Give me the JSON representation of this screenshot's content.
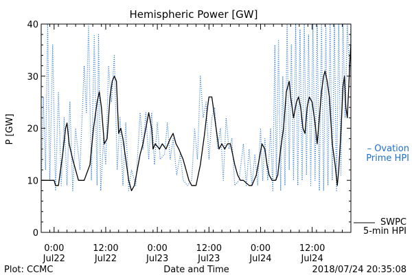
{
  "chart_data": {
    "type": "line",
    "title": "Hemispheric Power [GW]",
    "ylabel": "P [GW]",
    "xlabel": "Date and Time",
    "ylim": [
      0,
      40
    ],
    "yticks": [
      0,
      10,
      20,
      30,
      40
    ],
    "xlim": [
      "2018-07-21 21:00",
      "2018-07-24 21:00"
    ],
    "xticks": [
      {
        "time": "2018-07-22 00:00",
        "label1": "0:00",
        "label2": "Jul22"
      },
      {
        "time": "2018-07-22 12:00",
        "label1": "12:00",
        "label2": "Jul22"
      },
      {
        "time": "2018-07-23 00:00",
        "label1": "0:00",
        "label2": "Jul23"
      },
      {
        "time": "2018-07-23 12:00",
        "label1": "12:00",
        "label2": "Jul23"
      },
      {
        "time": "2018-07-24 00:00",
        "label1": "0:00",
        "label2": "Jul24"
      },
      {
        "time": "2018-07-24 12:00",
        "label1": "12:00",
        "label2": "Jul24"
      }
    ],
    "grid": false,
    "legend_placement": "right",
    "series": [
      {
        "name": "SWPC 5-min HPI",
        "style": "solid",
        "color": "#000000",
        "points": [
          [
            "2018-07-21 21:00",
            10
          ],
          [
            "2018-07-22 00:00",
            10
          ],
          [
            "2018-07-22 00:20",
            9
          ],
          [
            "2018-07-22 01:00",
            9
          ],
          [
            "2018-07-22 02:00",
            15
          ],
          [
            "2018-07-22 02:40",
            20
          ],
          [
            "2018-07-22 03:00",
            21
          ],
          [
            "2018-07-22 03:30",
            17
          ],
          [
            "2018-07-22 04:20",
            14
          ],
          [
            "2018-07-22 05:00",
            12
          ],
          [
            "2018-07-22 05:40",
            10
          ],
          [
            "2018-07-22 07:00",
            10
          ],
          [
            "2018-07-22 08:20",
            13
          ],
          [
            "2018-07-22 09:10",
            20
          ],
          [
            "2018-07-22 10:00",
            25
          ],
          [
            "2018-07-22 10:30",
            27
          ],
          [
            "2018-07-22 11:00",
            24
          ],
          [
            "2018-07-22 11:40",
            17
          ],
          [
            "2018-07-22 12:20",
            18
          ],
          [
            "2018-07-22 13:00",
            26
          ],
          [
            "2018-07-22 13:30",
            29
          ],
          [
            "2018-07-22 14:00",
            30
          ],
          [
            "2018-07-22 14:30",
            29
          ],
          [
            "2018-07-22 15:00",
            19
          ],
          [
            "2018-07-22 15:30",
            20
          ],
          [
            "2018-07-22 16:00",
            18
          ],
          [
            "2018-07-22 16:40",
            14
          ],
          [
            "2018-07-22 17:20",
            10
          ],
          [
            "2018-07-22 18:00",
            8
          ],
          [
            "2018-07-22 18:40",
            9
          ],
          [
            "2018-07-22 19:20",
            12
          ],
          [
            "2018-07-22 20:00",
            15
          ],
          [
            "2018-07-22 20:40",
            17
          ],
          [
            "2018-07-22 21:20",
            20
          ],
          [
            "2018-07-22 22:00",
            23
          ],
          [
            "2018-07-22 22:40",
            20
          ],
          [
            "2018-07-22 23:00",
            16
          ],
          [
            "2018-07-22 23:30",
            17
          ],
          [
            "2018-07-23 00:30",
            16
          ],
          [
            "2018-07-23 01:10",
            17
          ],
          [
            "2018-07-23 02:00",
            16
          ],
          [
            "2018-07-23 03:00",
            18
          ],
          [
            "2018-07-23 03:40",
            19
          ],
          [
            "2018-07-23 04:20",
            17
          ],
          [
            "2018-07-23 05:00",
            16
          ],
          [
            "2018-07-23 06:00",
            14
          ],
          [
            "2018-07-23 06:40",
            12
          ],
          [
            "2018-07-23 07:20",
            10
          ],
          [
            "2018-07-23 08:00",
            9
          ],
          [
            "2018-07-23 09:00",
            9
          ],
          [
            "2018-07-23 10:00",
            13
          ],
          [
            "2018-07-23 11:00",
            19
          ],
          [
            "2018-07-23 11:40",
            24
          ],
          [
            "2018-07-23 12:00",
            26
          ],
          [
            "2018-07-23 12:40",
            26
          ],
          [
            "2018-07-23 13:00",
            24
          ],
          [
            "2018-07-23 13:40",
            20
          ],
          [
            "2018-07-23 14:20",
            16
          ],
          [
            "2018-07-23 15:00",
            17
          ],
          [
            "2018-07-23 15:40",
            16
          ],
          [
            "2018-07-23 16:20",
            17
          ],
          [
            "2018-07-23 17:00",
            17
          ],
          [
            "2018-07-23 18:00",
            13
          ],
          [
            "2018-07-23 18:40",
            11
          ],
          [
            "2018-07-23 19:20",
            10
          ],
          [
            "2018-07-23 20:00",
            10
          ],
          [
            "2018-07-23 21:20",
            9
          ],
          [
            "2018-07-23 22:00",
            9
          ],
          [
            "2018-07-23 23:00",
            11
          ],
          [
            "2018-07-23 23:40",
            14
          ],
          [
            "2018-07-24 00:20",
            17
          ],
          [
            "2018-07-24 01:00",
            16
          ],
          [
            "2018-07-24 01:30",
            13
          ],
          [
            "2018-07-24 02:00",
            11
          ],
          [
            "2018-07-24 02:40",
            10
          ],
          [
            "2018-07-24 03:30",
            10
          ],
          [
            "2018-07-24 04:00",
            11
          ],
          [
            "2018-07-24 04:40",
            16
          ],
          [
            "2018-07-24 05:20",
            20
          ],
          [
            "2018-07-24 06:00",
            27
          ],
          [
            "2018-07-24 06:40",
            29
          ],
          [
            "2018-07-24 07:00",
            26
          ],
          [
            "2018-07-24 07:40",
            22
          ],
          [
            "2018-07-24 08:20",
            25
          ],
          [
            "2018-07-24 08:50",
            26
          ],
          [
            "2018-07-24 09:20",
            24
          ],
          [
            "2018-07-24 09:50",
            20
          ],
          [
            "2018-07-24 10:20",
            19
          ],
          [
            "2018-07-24 10:50",
            24
          ],
          [
            "2018-07-24 11:20",
            26
          ],
          [
            "2018-07-24 12:00",
            25
          ],
          [
            "2018-07-24 12:40",
            21
          ],
          [
            "2018-07-24 13:10",
            17
          ],
          [
            "2018-07-24 13:40",
            22
          ],
          [
            "2018-07-24 14:10",
            27
          ],
          [
            "2018-07-24 14:40",
            30
          ],
          [
            "2018-07-24 15:00",
            31
          ],
          [
            "2018-07-24 15:30",
            29
          ],
          [
            "2018-07-24 16:00",
            26
          ],
          [
            "2018-07-24 16:40",
            17
          ],
          [
            "2018-07-24 17:20",
            13
          ],
          [
            "2018-07-24 17:50",
            9
          ],
          [
            "2018-07-24 18:10",
            12
          ],
          [
            "2018-07-24 18:40",
            19
          ],
          [
            "2018-07-24 19:10",
            28
          ],
          [
            "2018-07-24 19:30",
            30
          ],
          [
            "2018-07-24 19:50",
            24
          ],
          [
            "2018-07-24 20:10",
            22
          ],
          [
            "2018-07-24 20:30",
            28
          ],
          [
            "2018-07-24 20:50",
            34
          ],
          [
            "2018-07-24 21:00",
            36
          ]
        ]
      },
      {
        "name": "Ovation Prime HPI",
        "style": "dotted",
        "color": "#1f6fd0",
        "points": [
          [
            "2018-07-21 21:00",
            8
          ],
          [
            "2018-07-21 21:30",
            26
          ],
          [
            "2018-07-21 22:00",
            12
          ],
          [
            "2018-07-21 22:30",
            40
          ],
          [
            "2018-07-21 23:00",
            10
          ],
          [
            "2018-07-21 23:40",
            36
          ],
          [
            "2018-07-22 00:20",
            8
          ],
          [
            "2018-07-22 01:00",
            27
          ],
          [
            "2018-07-22 01:40",
            9
          ],
          [
            "2018-07-22 02:20",
            22
          ],
          [
            "2018-07-22 03:00",
            9
          ],
          [
            "2018-07-22 03:40",
            25
          ],
          [
            "2018-07-22 04:20",
            8
          ],
          [
            "2018-07-22 05:00",
            20
          ],
          [
            "2018-07-22 06:00",
            12
          ],
          [
            "2018-07-22 07:00",
            32
          ],
          [
            "2018-07-22 07:30",
            23
          ],
          [
            "2018-07-22 08:00",
            40
          ],
          [
            "2018-07-22 08:40",
            10
          ],
          [
            "2018-07-22 09:20",
            38
          ],
          [
            "2018-07-22 10:00",
            9
          ],
          [
            "2018-07-22 10:20",
            38
          ],
          [
            "2018-07-22 10:50",
            8
          ],
          [
            "2018-07-22 11:30",
            18
          ],
          [
            "2018-07-22 12:00",
            13
          ],
          [
            "2018-07-22 12:40",
            32
          ],
          [
            "2018-07-22 13:20",
            25
          ],
          [
            "2018-07-22 14:00",
            34
          ],
          [
            "2018-07-22 14:40",
            12
          ],
          [
            "2018-07-22 15:20",
            22
          ],
          [
            "2018-07-22 16:00",
            9
          ],
          [
            "2018-07-22 16:40",
            21
          ],
          [
            "2018-07-22 17:20",
            8
          ],
          [
            "2018-07-22 18:00",
            12
          ],
          [
            "2018-07-22 19:00",
            9
          ],
          [
            "2018-07-22 20:00",
            23
          ],
          [
            "2018-07-22 20:40",
            16
          ],
          [
            "2018-07-22 21:20",
            23
          ],
          [
            "2018-07-22 22:00",
            14
          ],
          [
            "2018-07-22 22:40",
            23
          ],
          [
            "2018-07-22 23:20",
            13
          ],
          [
            "2018-07-23 00:00",
            21
          ],
          [
            "2018-07-23 00:40",
            14
          ],
          [
            "2018-07-23 01:40",
            15
          ],
          [
            "2018-07-23 02:20",
            21
          ],
          [
            "2018-07-23 03:00",
            14
          ],
          [
            "2018-07-23 03:40",
            18
          ],
          [
            "2018-07-23 04:30",
            11
          ],
          [
            "2018-07-23 05:20",
            15
          ],
          [
            "2018-07-23 06:00",
            10
          ],
          [
            "2018-07-23 07:00",
            9
          ],
          [
            "2018-07-23 08:00",
            10
          ],
          [
            "2018-07-23 08:40",
            20
          ],
          [
            "2018-07-23 09:20",
            14
          ],
          [
            "2018-07-23 10:00",
            30
          ],
          [
            "2018-07-23 10:40",
            22
          ],
          [
            "2018-07-23 11:20",
            25
          ],
          [
            "2018-07-23 12:00",
            14
          ],
          [
            "2018-07-23 12:40",
            22
          ],
          [
            "2018-07-23 13:20",
            24
          ],
          [
            "2018-07-23 14:00",
            16
          ],
          [
            "2018-07-23 14:40",
            20
          ],
          [
            "2018-07-23 15:20",
            10
          ],
          [
            "2018-07-23 16:00",
            22
          ],
          [
            "2018-07-23 16:40",
            16
          ],
          [
            "2018-07-23 17:20",
            18
          ],
          [
            "2018-07-23 18:00",
            9
          ],
          [
            "2018-07-23 19:00",
            10
          ],
          [
            "2018-07-23 20:00",
            17
          ],
          [
            "2018-07-23 20:40",
            9
          ],
          [
            "2018-07-23 21:20",
            16
          ],
          [
            "2018-07-23 22:00",
            9
          ],
          [
            "2018-07-23 22:40",
            15
          ],
          [
            "2018-07-23 23:20",
            9
          ],
          [
            "2018-07-24 00:00",
            20
          ],
          [
            "2018-07-24 00:30",
            10
          ],
          [
            "2018-07-24 01:00",
            18
          ],
          [
            "2018-07-24 01:40",
            10
          ],
          [
            "2018-07-24 02:20",
            20
          ],
          [
            "2018-07-24 02:50",
            8
          ],
          [
            "2018-07-24 03:20",
            36
          ],
          [
            "2018-07-24 03:40",
            10
          ],
          [
            "2018-07-24 04:10",
            37
          ],
          [
            "2018-07-24 04:40",
            8
          ],
          [
            "2018-07-24 05:10",
            30
          ],
          [
            "2018-07-24 05:40",
            9
          ],
          [
            "2018-07-24 06:10",
            40
          ],
          [
            "2018-07-24 06:40",
            12
          ],
          [
            "2018-07-24 07:10",
            36
          ],
          [
            "2018-07-24 07:40",
            10
          ],
          [
            "2018-07-24 08:10",
            40
          ],
          [
            "2018-07-24 08:40",
            9
          ],
          [
            "2018-07-24 09:10",
            39
          ],
          [
            "2018-07-24 09:40",
            10
          ],
          [
            "2018-07-24 10:10",
            40
          ],
          [
            "2018-07-24 10:40",
            11
          ],
          [
            "2018-07-24 11:10",
            38
          ],
          [
            "2018-07-24 11:40",
            9
          ],
          [
            "2018-07-24 12:10",
            40
          ],
          [
            "2018-07-24 12:40",
            10
          ],
          [
            "2018-07-24 13:10",
            40
          ],
          [
            "2018-07-24 13:40",
            8
          ],
          [
            "2018-07-24 14:10",
            40
          ],
          [
            "2018-07-24 14:40",
            8
          ],
          [
            "2018-07-24 15:10",
            40
          ],
          [
            "2018-07-24 15:40",
            9
          ],
          [
            "2018-07-24 16:10",
            40
          ],
          [
            "2018-07-24 16:40",
            10
          ],
          [
            "2018-07-24 17:10",
            40
          ],
          [
            "2018-07-24 17:40",
            8
          ],
          [
            "2018-07-24 18:10",
            40
          ],
          [
            "2018-07-24 18:40",
            11
          ],
          [
            "2018-07-24 19:10",
            40
          ],
          [
            "2018-07-24 19:40",
            22
          ],
          [
            "2018-07-24 20:10",
            40
          ],
          [
            "2018-07-24 20:40",
            30
          ],
          [
            "2018-07-24 21:00",
            40
          ]
        ]
      }
    ]
  },
  "legend": {
    "ovation_line1": "– Ovation",
    "ovation_line2": "Prime HPI",
    "swpc_line1": "SWPC",
    "swpc_line2": "5-min HPI"
  },
  "footer": {
    "plot_credit": "Plot: CCMC",
    "timestamp": "2018/07/24 20:35:08"
  },
  "colors": {
    "swpc": "#000000",
    "ovation": "#1f6fd0"
  }
}
